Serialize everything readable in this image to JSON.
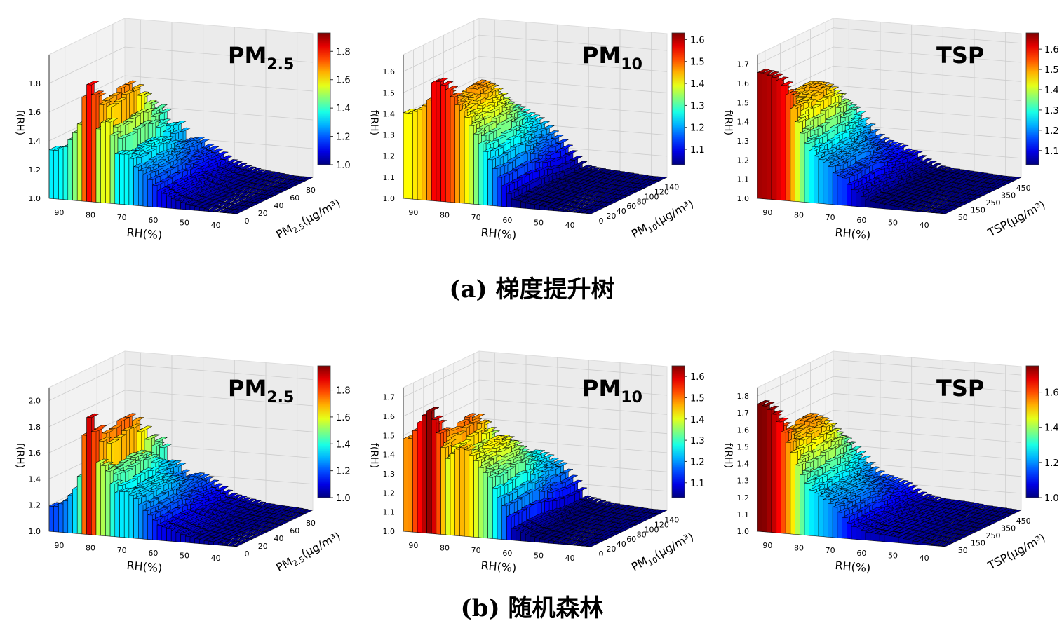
{
  "captions": {
    "a": "(a) 梯度提升树",
    "b": "(b) 随机森林"
  },
  "colormap": "jet",
  "chart_data": [
    {
      "type": "surface3d",
      "group": "a",
      "title": "PM",
      "title_sub": "2.5",
      "xlabel": "RH(%)",
      "ylabel_main": "PM",
      "ylabel_sub": "2.5",
      "ylabel_unit": "(μg/m³)",
      "zlabel": "f(RH)",
      "x_ticks": [
        "90",
        "80",
        "70",
        "60",
        "50",
        "40"
      ],
      "x_tick_values": [
        90,
        80,
        70,
        60,
        50,
        40
      ],
      "xlim": [
        95,
        35
      ],
      "y_ticks": [
        "0",
        "20",
        "40",
        "60",
        "80"
      ],
      "ylim": [
        0,
        95
      ],
      "z_ticks": [
        "1.0",
        "1.2",
        "1.4",
        "1.6",
        "1.8"
      ],
      "zlim": [
        1.0,
        2.0
      ],
      "colorbar_ticks": [
        "1.0",
        "1.2",
        "1.4",
        "1.6",
        "1.8"
      ],
      "colorbar_range": [
        1.0,
        1.93
      ],
      "surface": {
        "rh": [
          93,
          90,
          87,
          85,
          83,
          81,
          79,
          77,
          75,
          73,
          71,
          69,
          67,
          65,
          62,
          60,
          55,
          50,
          45,
          40,
          35
        ],
        "f": [
          1.35,
          1.38,
          1.5,
          1.6,
          1.93,
          1.9,
          1.55,
          1.72,
          1.6,
          1.4,
          1.45,
          1.42,
          1.33,
          1.3,
          1.22,
          1.15,
          1.08,
          1.04,
          1.02,
          1.0,
          1.0
        ]
      }
    },
    {
      "type": "surface3d",
      "group": "a",
      "title": "PM",
      "title_sub": "10",
      "xlabel": "RH(%)",
      "ylabel_main": "PM",
      "ylabel_sub": "10",
      "ylabel_unit": "(μg/m³)",
      "zlabel": "f(RH)",
      "x_ticks": [
        "90",
        "80",
        "70",
        "60",
        "50",
        "40"
      ],
      "x_tick_values": [
        90,
        80,
        70,
        60,
        50,
        40
      ],
      "xlim": [
        95,
        35
      ],
      "y_ticks": [
        "0",
        "20",
        "40",
        "60",
        "80",
        "100",
        "120",
        "140"
      ],
      "ylim": [
        0,
        150
      ],
      "z_ticks": [
        "1.0",
        "1.1",
        "1.2",
        "1.3",
        "1.4",
        "1.5",
        "1.6"
      ],
      "zlim": [
        1.0,
        1.68
      ],
      "colorbar_ticks": [
        "1.1",
        "1.2",
        "1.3",
        "1.4",
        "1.5",
        "1.6"
      ],
      "colorbar_range": [
        1.03,
        1.63
      ],
      "surface": {
        "rh": [
          93,
          90,
          87,
          85,
          83,
          80,
          78,
          75,
          72,
          70,
          68,
          65,
          62,
          60,
          55,
          50,
          45,
          40,
          35
        ],
        "f": [
          1.42,
          1.45,
          1.5,
          1.63,
          1.63,
          1.6,
          1.55,
          1.5,
          1.42,
          1.35,
          1.3,
          1.2,
          1.1,
          1.05,
          1.03,
          1.02,
          1.01,
          1.0,
          1.0
        ]
      }
    },
    {
      "type": "surface3d",
      "group": "a",
      "title": "TSP",
      "title_sub": "",
      "xlabel": "RH(%)",
      "ylabel_main": "TSP",
      "ylabel_sub": "",
      "ylabel_unit": "(μg/m³)",
      "zlabel": "f(RH)",
      "x_ticks": [
        "90",
        "80",
        "70",
        "60",
        "50",
        "40"
      ],
      "x_tick_values": [
        90,
        80,
        70,
        60,
        50,
        40
      ],
      "xlim": [
        95,
        35
      ],
      "y_ticks": [
        "50",
        "150",
        "250",
        "350",
        "450"
      ],
      "ylim": [
        0,
        500
      ],
      "z_ticks": [
        "1.0",
        "1.1",
        "1.2",
        "1.3",
        "1.4",
        "1.5",
        "1.6",
        "1.7"
      ],
      "zlim": [
        1.0,
        1.75
      ],
      "colorbar_ticks": [
        "1.1",
        "1.2",
        "1.3",
        "1.4",
        "1.5",
        "1.6"
      ],
      "colorbar_range": [
        1.03,
        1.68
      ],
      "surface": {
        "rh": [
          93,
          90,
          87,
          85,
          83,
          81,
          79,
          77,
          75,
          72,
          70,
          67,
          65,
          62,
          60,
          55,
          50,
          45,
          40,
          35
        ],
        "f": [
          1.68,
          1.68,
          1.66,
          1.6,
          1.5,
          1.42,
          1.35,
          1.3,
          1.28,
          1.25,
          1.2,
          1.18,
          1.12,
          1.08,
          1.05,
          1.03,
          1.02,
          1.01,
          1.0,
          1.0
        ]
      }
    },
    {
      "type": "surface3d",
      "group": "b",
      "title": "PM",
      "title_sub": "2.5",
      "xlabel": "RH(%)",
      "ylabel_main": "PM",
      "ylabel_sub": "2.5",
      "ylabel_unit": "(μg/m³)",
      "zlabel": "f(RH)",
      "x_ticks": [
        "90",
        "80",
        "70",
        "60",
        "50",
        "40"
      ],
      "x_tick_values": [
        90,
        80,
        70,
        60,
        50,
        40
      ],
      "xlim": [
        95,
        35
      ],
      "y_ticks": [
        "0",
        "20",
        "40",
        "60",
        "80"
      ],
      "ylim": [
        0,
        95
      ],
      "z_ticks": [
        "1.0",
        "1.2",
        "1.4",
        "1.6",
        "1.8",
        "2.0"
      ],
      "zlim": [
        1.0,
        2.1
      ],
      "colorbar_ticks": [
        "1.0",
        "1.2",
        "1.4",
        "1.6",
        "1.8"
      ],
      "colorbar_range": [
        1.0,
        1.98
      ],
      "surface": {
        "rh": [
          93,
          90,
          87,
          85,
          83,
          81,
          79,
          77,
          75,
          73,
          71,
          69,
          67,
          65,
          62,
          60,
          55,
          50,
          45,
          40,
          35
        ],
        "f": [
          1.2,
          1.25,
          1.35,
          1.5,
          2.05,
          1.95,
          1.6,
          1.65,
          1.5,
          1.4,
          1.45,
          1.42,
          1.38,
          1.3,
          1.22,
          1.15,
          1.1,
          1.05,
          1.03,
          1.02,
          1.0
        ]
      }
    },
    {
      "type": "surface3d",
      "group": "b",
      "title": "PM",
      "title_sub": "10",
      "xlabel": "RH(%)",
      "ylabel_main": "PM",
      "ylabel_sub": "10",
      "ylabel_unit": "(μg/m³)",
      "zlabel": "f(RH)",
      "x_ticks": [
        "90",
        "80",
        "70",
        "60",
        "50",
        "40"
      ],
      "x_tick_values": [
        90,
        80,
        70,
        60,
        50,
        40
      ],
      "xlim": [
        95,
        35
      ],
      "y_ticks": [
        "0",
        "20",
        "40",
        "60",
        "80",
        "100",
        "120",
        "140"
      ],
      "ylim": [
        0,
        150
      ],
      "z_ticks": [
        "1.0",
        "1.1",
        "1.2",
        "1.3",
        "1.4",
        "1.5",
        "1.6",
        "1.7"
      ],
      "zlim": [
        1.0,
        1.75
      ],
      "colorbar_ticks": [
        "1.1",
        "1.2",
        "1.3",
        "1.4",
        "1.5",
        "1.6"
      ],
      "colorbar_range": [
        1.03,
        1.65
      ],
      "surface": {
        "rh": [
          93,
          90,
          87,
          85,
          83,
          81,
          79,
          77,
          75,
          72,
          70,
          67,
          65,
          62,
          60,
          55,
          50,
          45,
          40,
          35
        ],
        "f": [
          1.5,
          1.6,
          1.7,
          1.65,
          1.55,
          1.45,
          1.5,
          1.55,
          1.55,
          1.5,
          1.45,
          1.4,
          1.3,
          1.2,
          1.08,
          1.04,
          1.02,
          1.01,
          1.0,
          1.0
        ]
      }
    },
    {
      "type": "surface3d",
      "group": "b",
      "title": "TSP",
      "title_sub": "",
      "xlabel": "RH(%)",
      "ylabel_main": "TSP",
      "ylabel_sub": "",
      "ylabel_unit": "(μg/m³)",
      "zlabel": "f(RH)",
      "x_ticks": [
        "90",
        "80",
        "70",
        "60",
        "50",
        "40"
      ],
      "x_tick_values": [
        90,
        80,
        70,
        60,
        50,
        40
      ],
      "xlim": [
        95,
        35
      ],
      "y_ticks": [
        "50",
        "150",
        "250",
        "350",
        "450"
      ],
      "ylim": [
        0,
        500
      ],
      "z_ticks": [
        "1.0",
        "1.1",
        "1.2",
        "1.3",
        "1.4",
        "1.5",
        "1.6",
        "1.7",
        "1.8"
      ],
      "zlim": [
        1.0,
        1.85
      ],
      "colorbar_ticks": [
        "1.0",
        "1.2",
        "1.4",
        "1.6"
      ],
      "colorbar_range": [
        1.0,
        1.75
      ],
      "surface": {
        "rh": [
          93,
          90,
          88,
          86,
          84,
          82,
          80,
          78,
          76,
          74,
          72,
          70,
          67,
          65,
          62,
          60,
          55,
          50,
          45,
          40,
          35
        ],
        "f": [
          1.78,
          1.75,
          1.7,
          1.62,
          1.55,
          1.45,
          1.38,
          1.32,
          1.3,
          1.28,
          1.25,
          1.22,
          1.15,
          1.1,
          1.08,
          1.06,
          1.05,
          1.04,
          1.02,
          1.01,
          1.0
        ]
      }
    }
  ]
}
